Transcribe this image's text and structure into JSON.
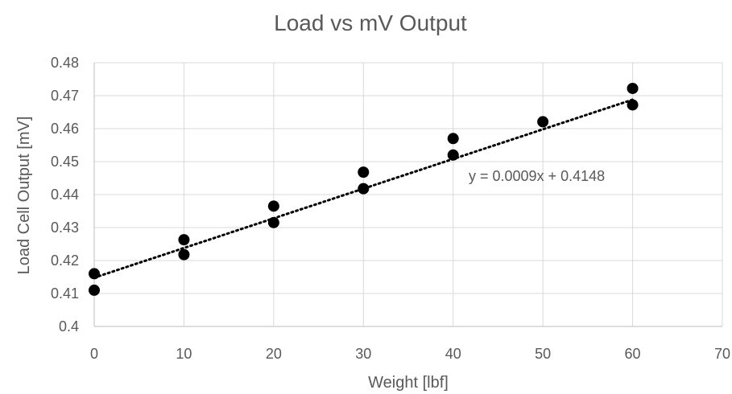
{
  "chart_data": {
    "type": "scatter",
    "title": "Load vs mV Output",
    "xlabel": "Weight [lbf]",
    "ylabel": "Load Cell Output [mV]",
    "xlim": [
      0,
      70
    ],
    "ylim": [
      0.4,
      0.48
    ],
    "x_ticks": [
      0,
      10,
      20,
      30,
      40,
      50,
      60,
      70
    ],
    "y_ticks": [
      0.4,
      0.41,
      0.42,
      0.43,
      0.44,
      0.45,
      0.46,
      0.47,
      0.48
    ],
    "x_tick_labels": [
      "0",
      "10",
      "20",
      "30",
      "40",
      "50",
      "60",
      "70"
    ],
    "y_tick_labels": [
      "0.4",
      "0.41",
      "0.42",
      "0.43",
      "0.44",
      "0.45",
      "0.46",
      "0.47",
      "0.48"
    ],
    "grid": true,
    "legend": "none",
    "series": [
      {
        "points": [
          {
            "x": 0,
            "y": 0.416
          },
          {
            "x": 0,
            "y": 0.411
          },
          {
            "x": 10,
            "y": 0.4263
          },
          {
            "x": 10,
            "y": 0.4218
          },
          {
            "x": 20,
            "y": 0.4365
          },
          {
            "x": 20,
            "y": 0.4315
          },
          {
            "x": 30,
            "y": 0.4468
          },
          {
            "x": 30,
            "y": 0.4418
          },
          {
            "x": 40,
            "y": 0.457
          },
          {
            "x": 40,
            "y": 0.452
          },
          {
            "x": 50,
            "y": 0.4621
          },
          {
            "x": 60,
            "y": 0.4722
          },
          {
            "x": 60,
            "y": 0.4672
          }
        ],
        "color": "#000000"
      }
    ],
    "trendline": {
      "type": "linear",
      "slope": 0.0009,
      "intercept": 0.4148,
      "x_range": [
        0,
        60
      ],
      "style": "dotted",
      "color": "#000000",
      "equation_label": "y = 0.0009x + 0.4148"
    }
  }
}
